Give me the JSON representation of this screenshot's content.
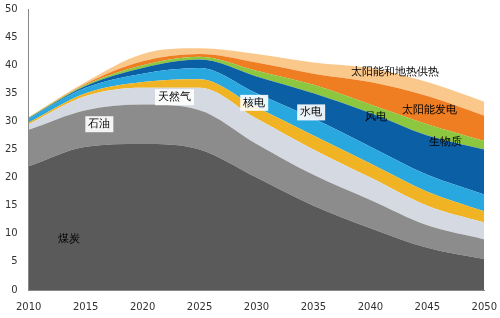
{
  "chart_data": {
    "type": "area",
    "stacked": true,
    "grid": false,
    "x": [
      2010,
      2015,
      2020,
      2025,
      2030,
      2035,
      2040,
      2045,
      2050
    ],
    "xlim": [
      2010,
      2050
    ],
    "xticks": [
      2010,
      2015,
      2020,
      2025,
      2030,
      2035,
      2040,
      2045,
      2050
    ],
    "ylim": [
      0,
      50
    ],
    "yticks": [
      0,
      5,
      10,
      15,
      20,
      25,
      30,
      35,
      40,
      45,
      50
    ],
    "series": [
      {
        "name": "煤炭",
        "color": "#5a5a5a",
        "values": [
          22,
          25.5,
          26,
          25,
          20,
          15,
          11,
          7.5,
          5.5
        ]
      },
      {
        "name": "石油",
        "color": "#8c8c8c",
        "values": [
          6.5,
          6.5,
          7,
          7,
          6,
          5.5,
          5,
          4,
          3.5
        ]
      },
      {
        "name": "天然气",
        "color": "#d5dae2",
        "values": [
          1,
          2.5,
          3,
          4,
          4.5,
          4.5,
          4,
          3.5,
          3
        ]
      },
      {
        "name": "核电",
        "color": "#f0b323",
        "values": [
          0.3,
          0.5,
          1,
          1.5,
          2,
          2.5,
          2.5,
          2.5,
          2
        ]
      },
      {
        "name": "水电",
        "color": "#29a8e0",
        "values": [
          0.7,
          1,
          1.5,
          2,
          2.5,
          3,
          3,
          3,
          3
        ]
      },
      {
        "name": "风电",
        "color": "#0b5fa5",
        "values": [
          0.1,
          0.3,
          1,
          1.5,
          3,
          4.5,
          6,
          7,
          8
        ]
      },
      {
        "name": "生物质",
        "color": "#8dc63f",
        "values": [
          0.1,
          0.2,
          0.5,
          0.5,
          1,
          1.5,
          1.5,
          2,
          1.5
        ]
      },
      {
        "name": "太阳能发电",
        "color": "#ef7d22",
        "values": [
          0,
          0.2,
          0.7,
          0.5,
          1.5,
          2,
          4,
          5,
          4.5
        ]
      },
      {
        "name": "太阳能和地热供热",
        "color": "#fbc88c",
        "values": [
          0.1,
          0.3,
          1.3,
          1,
          1.5,
          2,
          2.5,
          2.5,
          2.5
        ]
      }
    ]
  }
}
